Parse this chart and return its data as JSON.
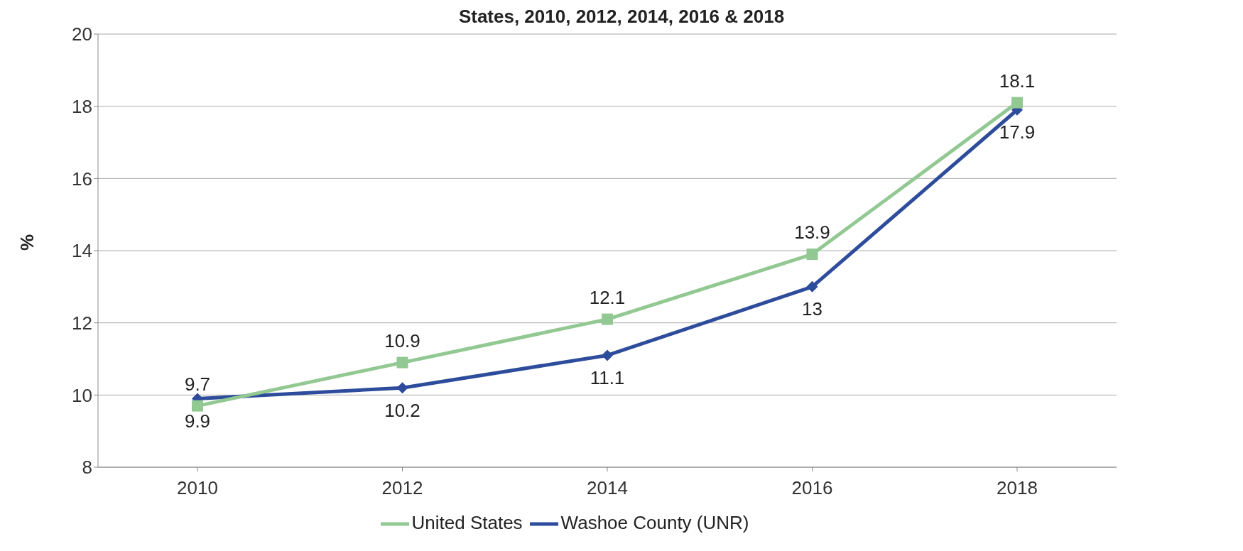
{
  "chart_data": {
    "type": "line",
    "title": "States, 2010, 2012, 2014, 2016 & 2018",
    "ylabel": "%",
    "categories": [
      "2010",
      "2012",
      "2014",
      "2016",
      "2018"
    ],
    "series": [
      {
        "name": "Washoe County (UNR)",
        "color": "#2e4c9c",
        "values": [
          9.9,
          10.2,
          11.1,
          13,
          17.9
        ],
        "marker": "diamond"
      },
      {
        "name": "United States",
        "color": "#92c892",
        "values": [
          9.7,
          10.9,
          12.1,
          13.9,
          18.1
        ],
        "marker": "square"
      }
    ],
    "ylim": [
      8,
      20
    ],
    "yticks": [
      8,
      10,
      12,
      14,
      16,
      18,
      20
    ],
    "grid": "y",
    "legend": "bottom",
    "data_labels": true
  }
}
